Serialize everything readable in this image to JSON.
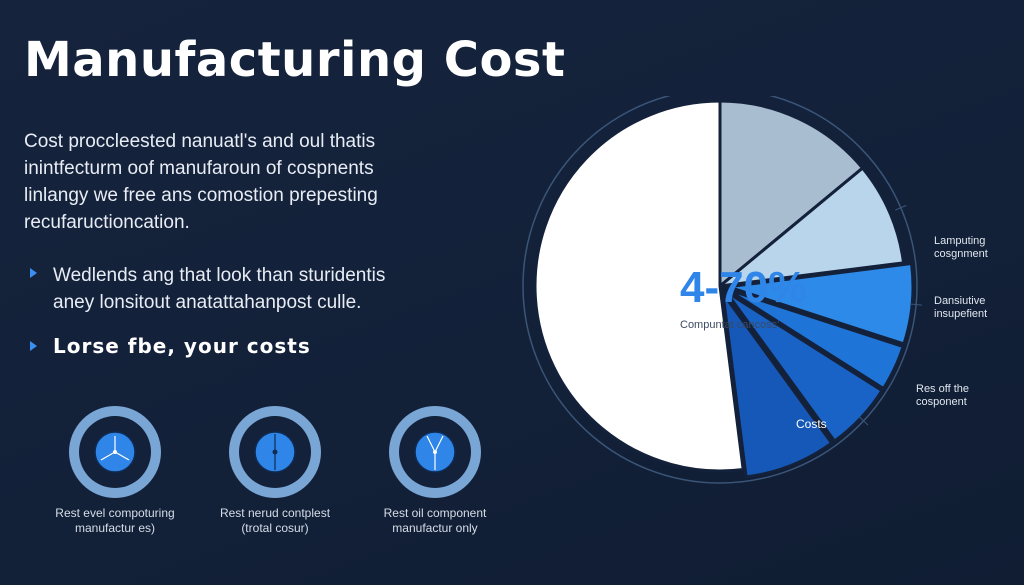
{
  "header": {
    "title": "Manufacturing Cost"
  },
  "intro": {
    "lines": [
      "Cost proccleested nanuatl's and oul thatis",
      "inintfecturm oof manufaroun of cospnents",
      "linlangy we free ans comostion prepesting",
      "recufaructioncation."
    ]
  },
  "bullets": [
    {
      "lines": [
        "Wedlends ang that look than sturidentis",
        "aney lonsitout anatattahanpost culle."
      ]
    },
    {
      "lines": [
        "Lorse fbe, your costs"
      ]
    }
  ],
  "icons": [
    {
      "icon": "target-icon",
      "caption": [
        "Rest evel compoturing",
        "manufactur es)"
      ]
    },
    {
      "icon": "target-icon",
      "caption": [
        "Rest nerud contplest",
        "(trotal cosur)"
      ]
    },
    {
      "icon": "target-icon",
      "caption": [
        "Rest oil component",
        "manufactur only"
      ]
    }
  ],
  "colors": {
    "background": "#14213a",
    "accent": "#3b8ff0",
    "icon_ring": "#7aa6d6",
    "icon_core": "#2f86e8"
  },
  "chart_data": {
    "type": "pie",
    "center_label": "4-70%",
    "center_sublabel": "Compuntat cancoss'",
    "slices": [
      {
        "label": "",
        "value": 14,
        "color": "#a9bdd0"
      },
      {
        "label": "Lamputing cosgnment",
        "value": 9,
        "color": "#b9d5ec"
      },
      {
        "label": "Dansiutive insupefient",
        "value": 7,
        "color": "#2d8ae8"
      },
      {
        "label": "",
        "value": 4,
        "color": "#1f74d8"
      },
      {
        "label": "Res off the cosponent",
        "value": 6,
        "color": "#1a63c6"
      },
      {
        "label": "Costs",
        "value": 8,
        "color": "#1658b8"
      },
      {
        "label": "",
        "value": 52,
        "color": "#ffffff"
      }
    ],
    "outer_labels": [
      {
        "text": [
          "Lamputing",
          "cosgnment"
        ]
      },
      {
        "text": [
          "Dansiutive",
          "insupefient"
        ]
      },
      {
        "text": [
          "Res off the",
          "cosponent"
        ]
      }
    ],
    "inner_label": "Costs"
  }
}
